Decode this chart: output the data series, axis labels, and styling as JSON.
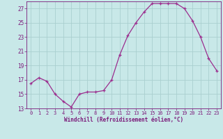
{
  "x": [
    0,
    1,
    2,
    3,
    4,
    5,
    6,
    7,
    8,
    9,
    10,
    11,
    12,
    13,
    14,
    15,
    16,
    17,
    18,
    19,
    20,
    21,
    22,
    23
  ],
  "y": [
    16.5,
    17.3,
    16.8,
    15.0,
    14.0,
    13.2,
    15.0,
    15.3,
    15.3,
    15.5,
    17.0,
    20.5,
    23.2,
    25.0,
    26.5,
    27.7,
    27.7,
    27.7,
    27.7,
    27.0,
    25.3,
    23.0,
    20.0,
    18.3
  ],
  "line_color": "#9b2d8e",
  "marker": "+",
  "bg_color": "#c8e8e8",
  "grid_color": "#aacfcf",
  "xlabel": "Windchill (Refroidissement éolien,°C)",
  "xlabel_color": "#7b1a7a",
  "tick_color": "#7b1a7a",
  "ylim": [
    13,
    28
  ],
  "yticks": [
    13,
    15,
    17,
    19,
    21,
    23,
    25,
    27
  ],
  "xlim": [
    -0.5,
    23.5
  ],
  "xticks": [
    0,
    1,
    2,
    3,
    4,
    5,
    6,
    7,
    8,
    9,
    10,
    11,
    12,
    13,
    14,
    15,
    16,
    17,
    18,
    19,
    20,
    21,
    22,
    23
  ]
}
